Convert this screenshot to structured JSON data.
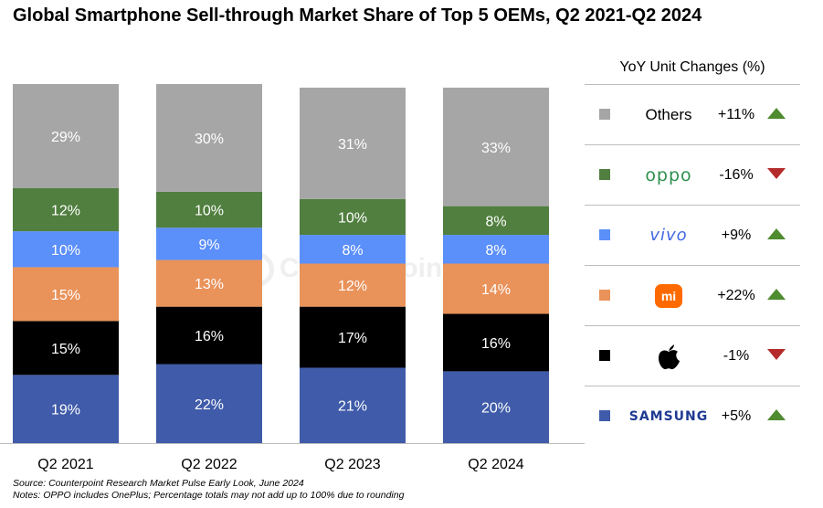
{
  "title": "Global Smartphone Sell-through Market Share of Top 5 OEMs, Q2 2021-Q2 2024",
  "watermark": "Counterpoint",
  "chart_data": {
    "type": "bar",
    "stacked": true,
    "categories": [
      "Q2 2021",
      "Q2 2022",
      "Q2 2023",
      "Q2 2024"
    ],
    "series": [
      {
        "name": "SAMSUNG",
        "values": [
          19,
          22,
          21,
          20
        ],
        "labels": [
          "19%",
          "22%",
          "21%",
          "20%"
        ],
        "color": "#3f5ba9",
        "label_color": "#ffffff"
      },
      {
        "name": "Apple",
        "values": [
          15,
          16,
          17,
          16
        ],
        "labels": [
          "15%",
          "16%",
          "17%",
          "16%"
        ],
        "color": "#000000",
        "label_color": "#ffffff"
      },
      {
        "name": "Xiaomi",
        "values": [
          15,
          13,
          12,
          14
        ],
        "labels": [
          "15%",
          "13%",
          "12%",
          "14%"
        ],
        "color": "#e9925a",
        "label_color": "#ffffff"
      },
      {
        "name": "vivo",
        "values": [
          10,
          9,
          8,
          8
        ],
        "labels": [
          "10%",
          "9%",
          "8%",
          "8%"
        ],
        "color": "#5b8ff9",
        "label_color": "#ffffff"
      },
      {
        "name": "OPPO",
        "values": [
          12,
          10,
          10,
          8
        ],
        "labels": [
          "12%",
          "10%",
          "10%",
          "8%"
        ],
        "color": "#507f3f",
        "label_color": "#ffffff"
      },
      {
        "name": "Others",
        "values": [
          29,
          30,
          31,
          33
        ],
        "labels": [
          "29%",
          "30%",
          "31%",
          "33%"
        ],
        "color": "#a6a6a6",
        "label_color": "#ffffff"
      }
    ],
    "ylim": [
      0,
      100
    ]
  },
  "legend": {
    "header": "YoY Unit Changes (%)",
    "rows": [
      {
        "brand": "Others",
        "change": "+11%",
        "direction": "up",
        "color": "#a6a6a6",
        "logo": "text"
      },
      {
        "brand": "oppo",
        "change": "-16%",
        "direction": "down",
        "color": "#507f3f",
        "logo": "oppo-logo"
      },
      {
        "brand": "vivo",
        "change": "+9%",
        "direction": "up",
        "color": "#5b8ff9",
        "logo": "vivo-logo"
      },
      {
        "brand": "mi",
        "change": "+22%",
        "direction": "up",
        "color": "#e9925a",
        "logo": "xiaomi-logo"
      },
      {
        "brand": "",
        "change": "-1%",
        "direction": "down",
        "color": "#000000",
        "logo": "apple-logo"
      },
      {
        "brand": "SAMSUNG",
        "change": "+5%",
        "direction": "up",
        "color": "#3f5ba9",
        "logo": "samsung-logo"
      }
    ]
  },
  "notes": {
    "source": "Source: Counterpoint Research Market Pulse Early Look, June 2024",
    "notes": "Notes: OPPO includes OnePlus; Percentage totals may not add up to 100% due to rounding"
  }
}
